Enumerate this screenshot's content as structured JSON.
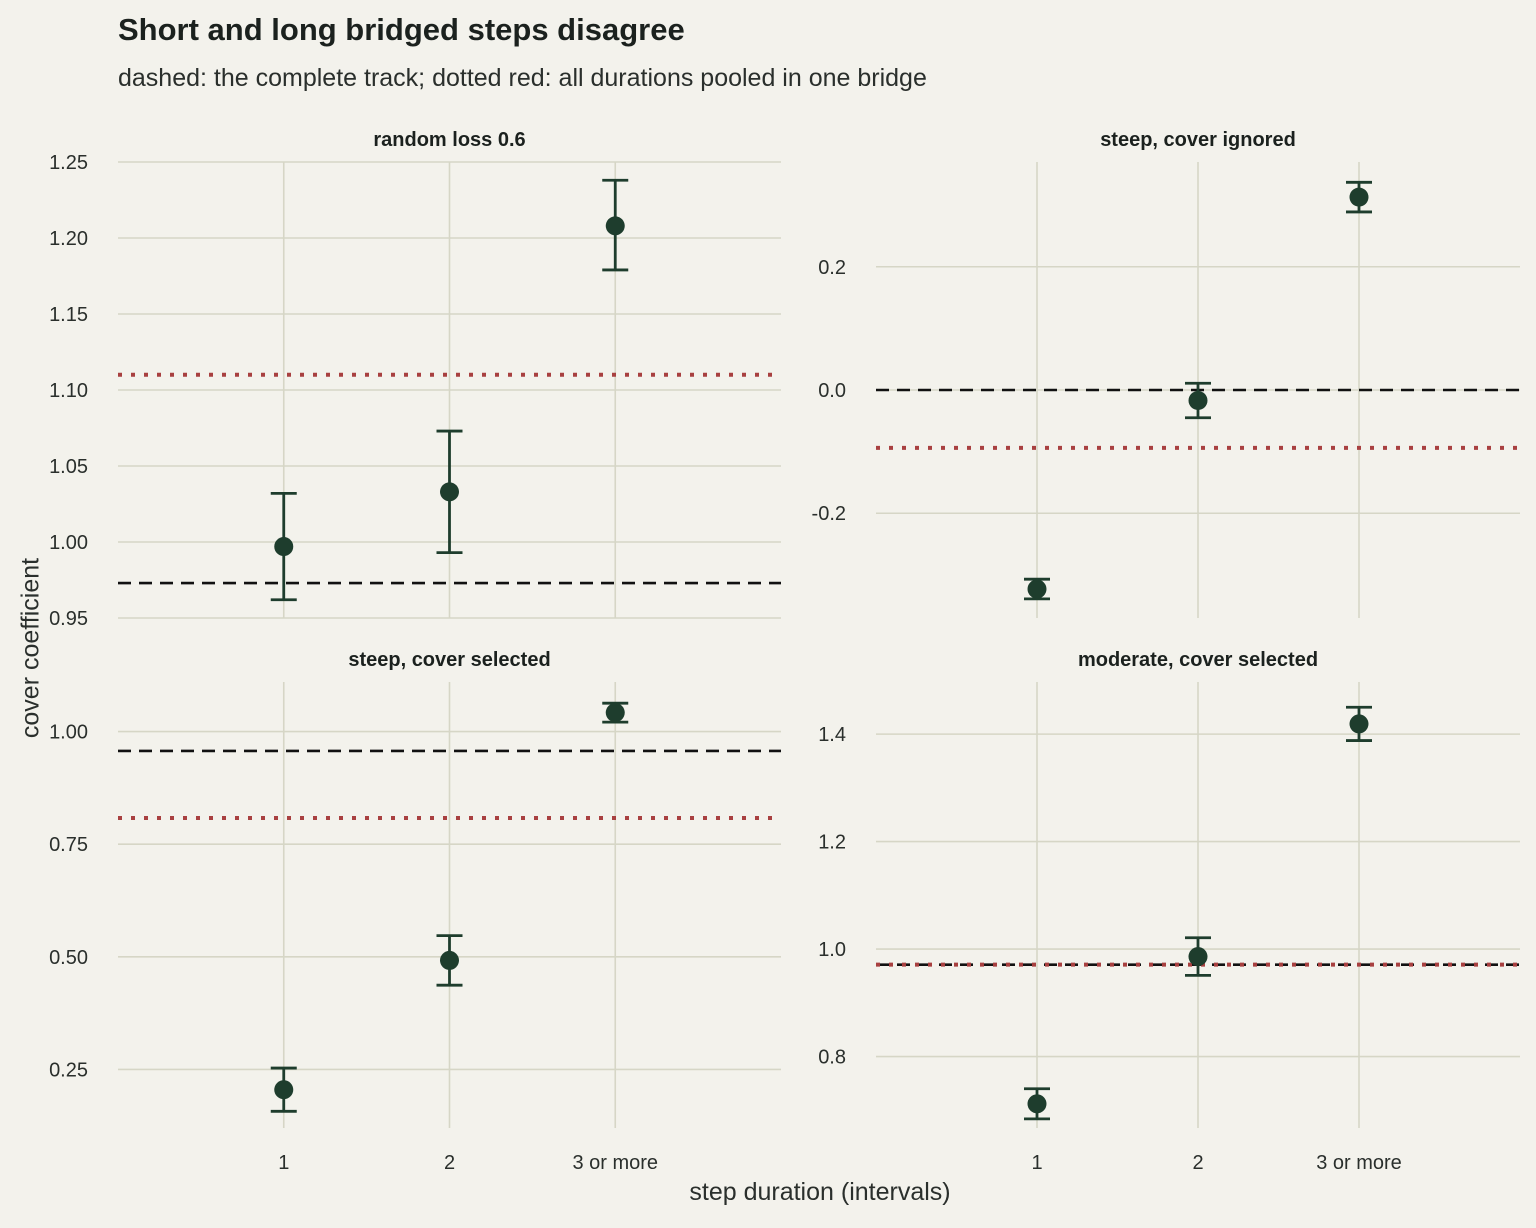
{
  "title": "Short and long bridged steps disagree",
  "subtitle": "dashed: the complete track; dotted red: all durations pooled in one bridge",
  "xlabel": "step duration (intervals)",
  "ylabel": "cover coefficient",
  "colors": {
    "background": "#f3f2ec",
    "grid": "#d6d6c6",
    "point": "#1e3d2d",
    "dashed_line": "#111111",
    "dotted_line": "#a84040"
  },
  "chart_data": [
    {
      "type": "scatter",
      "facet": "random loss 0.6",
      "categories": [
        "1",
        "2",
        "3 or more"
      ],
      "estimate": [
        0.997,
        1.033,
        1.208
      ],
      "lower": [
        0.962,
        0.993,
        1.179
      ],
      "upper": [
        1.032,
        1.073,
        1.238
      ],
      "complete_track": 0.973,
      "pooled_bridge": 1.11,
      "ylim": [
        0.95,
        1.25
      ],
      "yticks": [
        0.95,
        1.0,
        1.05,
        1.1,
        1.15,
        1.2,
        1.25
      ],
      "ytick_labels": [
        "0.95",
        "1.00",
        "1.05",
        "1.10",
        "1.15",
        "1.20",
        "1.25"
      ]
    },
    {
      "type": "scatter",
      "facet": "steep, cover ignored",
      "categories": [
        "1",
        "2",
        "3 or more"
      ],
      "estimate": [
        -0.323,
        -0.017,
        0.313
      ],
      "lower": [
        -0.339,
        -0.045,
        0.289
      ],
      "upper": [
        -0.307,
        0.011,
        0.337
      ],
      "complete_track": 0.0,
      "pooled_bridge": -0.094,
      "ylim": [
        -0.37,
        0.37
      ],
      "yticks": [
        -0.2,
        0.0,
        0.2
      ],
      "ytick_labels": [
        "-0.2",
        "0.0",
        "0.2"
      ]
    },
    {
      "type": "scatter",
      "facet": "steep, cover selected",
      "categories": [
        "1",
        "2",
        "3 or more"
      ],
      "estimate": [
        0.205,
        0.492,
        1.042
      ],
      "lower": [
        0.157,
        0.437,
        1.021
      ],
      "upper": [
        0.253,
        0.547,
        1.063
      ],
      "complete_track": 0.957,
      "pooled_bridge": 0.808,
      "ylim": [
        0.12,
        1.11
      ],
      "yticks": [
        0.25,
        0.5,
        0.75,
        1.0
      ],
      "ytick_labels": [
        "0.25",
        "0.50",
        "0.75",
        "1.00"
      ]
    },
    {
      "type": "scatter",
      "facet": "moderate, cover selected",
      "categories": [
        "1",
        "2",
        "3 or more"
      ],
      "estimate": [
        0.712,
        0.986,
        1.419
      ],
      "lower": [
        0.684,
        0.951,
        1.388
      ],
      "upper": [
        0.74,
        1.021,
        1.45
      ],
      "complete_track": 0.971,
      "pooled_bridge": 0.971,
      "ylim": [
        0.667,
        1.497
      ],
      "yticks": [
        0.8,
        1.0,
        1.2,
        1.4
      ],
      "ytick_labels": [
        "0.8",
        "1.0",
        "1.2",
        "1.4"
      ]
    }
  ]
}
